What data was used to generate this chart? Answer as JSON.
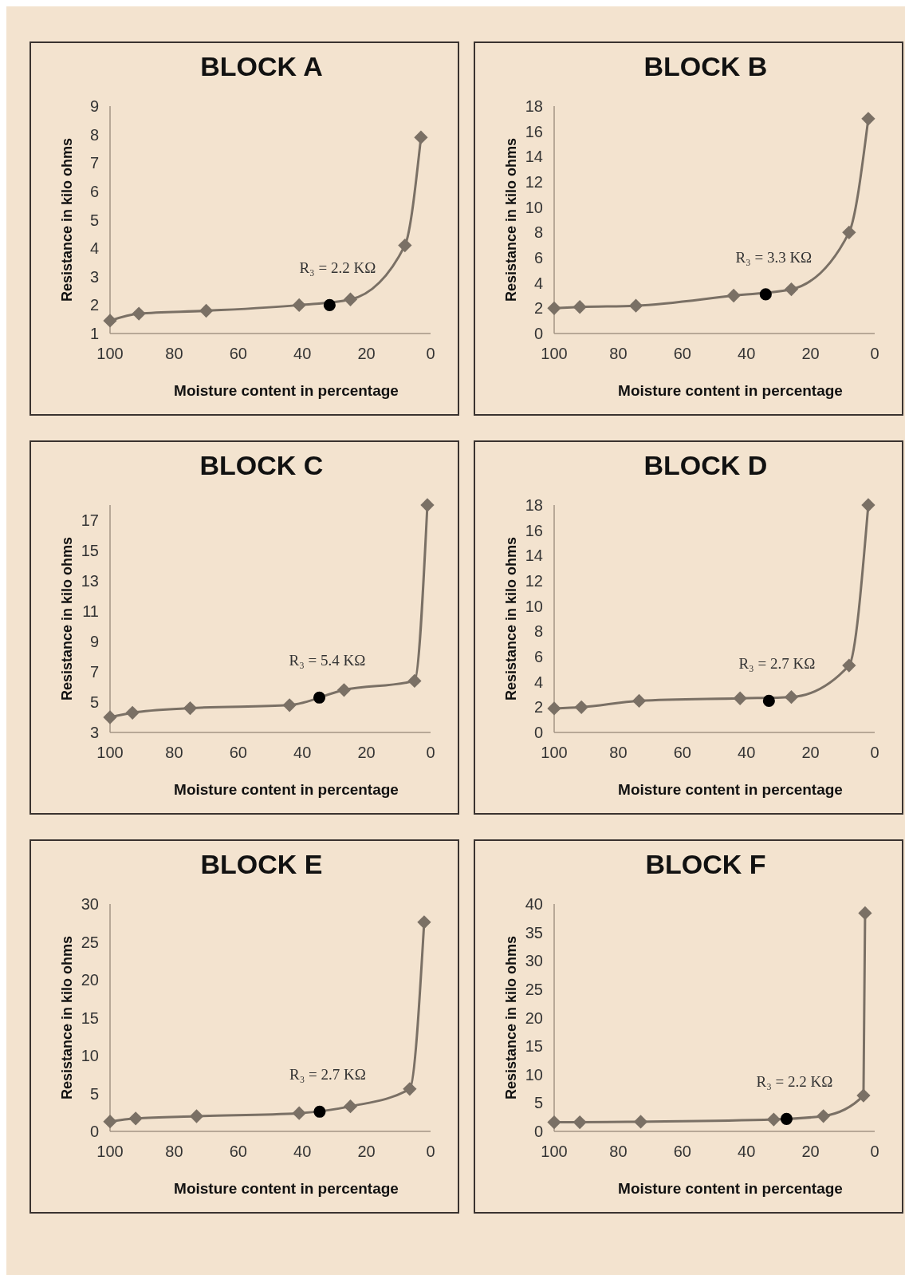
{
  "chart_data": [
    {
      "type": "line",
      "title": "BLOCK A",
      "xlabel": "Moisture content in percentage",
      "ylabel": "Resistance in kilo ohms",
      "xlim": [
        100,
        0
      ],
      "xticks": [
        100,
        80,
        60,
        40,
        20,
        0
      ],
      "ylim": [
        1,
        9
      ],
      "yticks": [
        1,
        2,
        3,
        4,
        5,
        6,
        7,
        8,
        9
      ],
      "marker": "diamond",
      "grid": false,
      "series": [
        {
          "color": "#7a7065",
          "x": [
            100,
            91,
            70,
            41,
            25,
            8,
            3
          ],
          "values": [
            1.45,
            1.7,
            1.8,
            2.0,
            2.2,
            4.1,
            7.9
          ]
        },
        {
          "type": "scatter",
          "color": "#000000",
          "marker": "circle",
          "x": [
            31.5
          ],
          "values": [
            2.0
          ]
        }
      ],
      "annotations": [
        {
          "text": "R₃ = 2.2 KΩ",
          "x": 31.5,
          "y": 2.0
        }
      ]
    },
    {
      "type": "line",
      "title": "BLOCK B",
      "xlabel": "Moisture content in percentage",
      "ylabel": "Resistance in kilo ohms",
      "xlim": [
        100,
        0
      ],
      "xticks": [
        100,
        80,
        60,
        40,
        20,
        0
      ],
      "ylim": [
        0,
        18
      ],
      "yticks": [
        0,
        2,
        4,
        6,
        8,
        10,
        12,
        14,
        16,
        18
      ],
      "marker": "diamond",
      "grid": false,
      "series": [
        {
          "color": "#7a7065",
          "x": [
            100,
            92,
            74.5,
            44,
            26,
            8,
            2
          ],
          "values": [
            2.0,
            2.1,
            2.2,
            3.0,
            3.5,
            8.0,
            17.0
          ]
        },
        {
          "type": "scatter",
          "color": "#000000",
          "marker": "circle",
          "x": [
            34
          ],
          "values": [
            3.1
          ]
        }
      ],
      "annotations": [
        {
          "text": "R₃ = 3.3 KΩ",
          "x": 34,
          "y": 3.1
        }
      ]
    },
    {
      "type": "line",
      "title": "BLOCK C",
      "xlabel": "Moisture content in percentage",
      "ylabel": "Resistance in kilo ohms",
      "xlim": [
        100,
        0
      ],
      "xticks": [
        100,
        80,
        60,
        40,
        20,
        0
      ],
      "ylim": [
        3,
        18
      ],
      "yticks": [
        3,
        5,
        7,
        9,
        11,
        13,
        15,
        17
      ],
      "marker": "diamond",
      "grid": false,
      "series": [
        {
          "color": "#7a7065",
          "x": [
            100,
            93,
            75,
            44,
            27,
            5,
            1
          ],
          "values": [
            4.0,
            4.3,
            4.6,
            4.8,
            5.8,
            6.4,
            18.0
          ]
        },
        {
          "type": "scatter",
          "color": "#000000",
          "marker": "circle",
          "x": [
            34.7
          ],
          "values": [
            5.3
          ]
        }
      ],
      "annotations": [
        {
          "text": "R₃ = 5.4 KΩ",
          "x": 34.7,
          "y": 5.3
        }
      ]
    },
    {
      "type": "line",
      "title": "BLOCK D",
      "xlabel": "Moisture content in percentage",
      "ylabel": "Resistance in kilo ohms",
      "xlim": [
        100,
        0
      ],
      "xticks": [
        100,
        80,
        60,
        40,
        20,
        0
      ],
      "ylim": [
        0,
        18
      ],
      "yticks": [
        0,
        2,
        4,
        6,
        8,
        10,
        12,
        14,
        16,
        18
      ],
      "marker": "diamond",
      "grid": false,
      "series": [
        {
          "color": "#7a7065",
          "x": [
            100,
            91.5,
            73.5,
            42,
            26,
            8,
            2
          ],
          "values": [
            1.9,
            2.0,
            2.5,
            2.7,
            2.8,
            5.3,
            18.0
          ]
        },
        {
          "type": "scatter",
          "color": "#000000",
          "marker": "circle",
          "x": [
            33
          ],
          "values": [
            2.5
          ]
        }
      ],
      "annotations": [
        {
          "text": "R₃ = 2.7 KΩ",
          "x": 33,
          "y": 2.5
        }
      ]
    },
    {
      "type": "line",
      "title": "BLOCK E",
      "xlabel": "Moisture content in percentage",
      "ylabel": "Resistance in kilo ohms",
      "xlim": [
        100,
        0
      ],
      "xticks": [
        100,
        80,
        60,
        40,
        20,
        0
      ],
      "ylim": [
        0,
        30
      ],
      "yticks": [
        0,
        5,
        10,
        15,
        20,
        25,
        30
      ],
      "marker": "diamond",
      "grid": false,
      "series": [
        {
          "color": "#7a7065",
          "x": [
            100,
            92,
            73,
            41,
            25,
            6.5,
            2
          ],
          "values": [
            1.3,
            1.7,
            2.0,
            2.4,
            3.3,
            5.6,
            27.6
          ]
        },
        {
          "type": "scatter",
          "color": "#000000",
          "marker": "circle",
          "x": [
            34.6
          ],
          "values": [
            2.6
          ]
        }
      ],
      "annotations": [
        {
          "text": "R₃ = 2.7 KΩ",
          "x": 34.6,
          "y": 2.6
        }
      ]
    },
    {
      "type": "line",
      "title": "BLOCK F",
      "xlabel": "Moisture content in percentage",
      "ylabel": "Resistance in kilo ohms",
      "xlim": [
        100,
        0
      ],
      "xticks": [
        100,
        80,
        60,
        40,
        20,
        0
      ],
      "ylim": [
        0,
        40
      ],
      "yticks": [
        0,
        5,
        10,
        15,
        20,
        25,
        30,
        35,
        40
      ],
      "marker": "diamond",
      "grid": false,
      "series": [
        {
          "color": "#7a7065",
          "x": [
            100,
            92,
            73,
            31.5,
            16,
            3.5,
            3
          ],
          "values": [
            1.6,
            1.6,
            1.7,
            2.1,
            2.7,
            6.3,
            38.4
          ]
        },
        {
          "type": "scatter",
          "color": "#000000",
          "marker": "circle",
          "x": [
            27.5
          ],
          "values": [
            2.2
          ]
        }
      ],
      "annotations": [
        {
          "text": "R₃ = 2.2 KΩ",
          "x": 27.5,
          "y": 2.2
        }
      ]
    }
  ]
}
